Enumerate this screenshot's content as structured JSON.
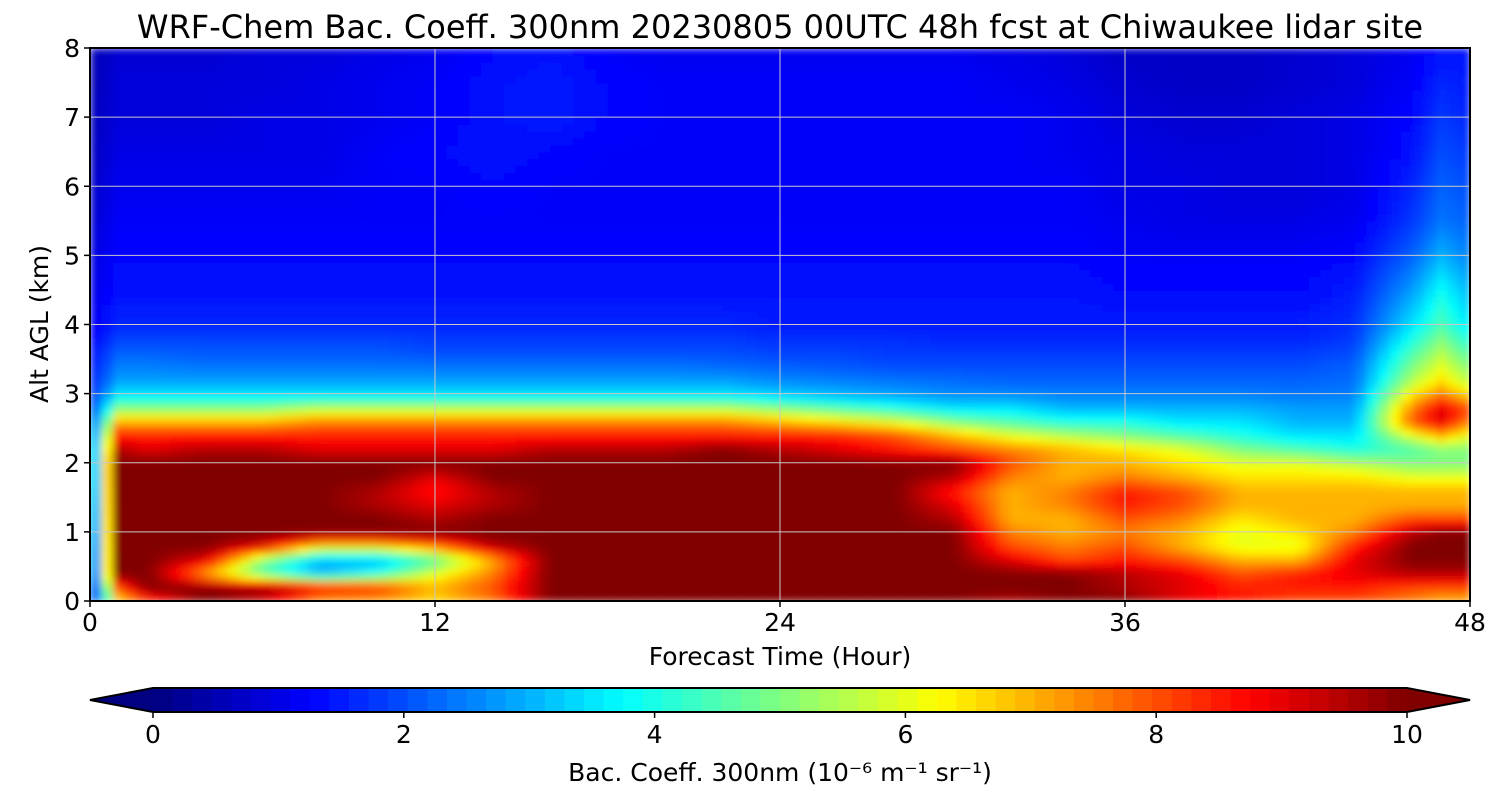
{
  "chart_data": {
    "type": "heatmap",
    "title": "WRF-Chem Bac. Coeff. 300nm  20230805 00UTC 48h fcst at Chiwaukee lidar site",
    "xlabel": "Forecast Time (Hour)",
    "ylabel": "Alt AGL (km)",
    "xlim": [
      0,
      48
    ],
    "ylim": [
      0,
      8
    ],
    "xticks": [
      0,
      12,
      24,
      36,
      48
    ],
    "yticks": [
      0,
      1,
      2,
      3,
      4,
      5,
      6,
      7,
      8
    ],
    "grid": true,
    "colormap": "jet",
    "colorbar": {
      "orientation": "horizontal",
      "range": [
        0,
        10
      ],
      "ticks": [
        0,
        2,
        4,
        6,
        8,
        10
      ],
      "extend": "both",
      "label": "Bac. Coeff. 300nm  (10⁻⁶ m⁻¹ sr⁻¹)"
    },
    "time_hours": [
      0,
      1,
      2,
      4,
      6,
      8,
      10,
      12,
      14,
      16,
      18,
      20,
      22,
      24,
      26,
      28,
      30,
      32,
      34,
      36,
      38,
      40,
      42,
      44,
      46,
      47,
      48
    ],
    "altitude_km": [
      0,
      0.2,
      0.4,
      0.6,
      0.8,
      1.0,
      1.2,
      1.4,
      1.6,
      1.8,
      2.0,
      2.2,
      2.4,
      2.6,
      2.8,
      3.0,
      3.2,
      3.4,
      3.6,
      3.8,
      4.0,
      4.5,
      5.0,
      5.5,
      6.0,
      6.5,
      7.0,
      7.5,
      8.0
    ],
    "values": [
      [
        1.2,
        6.5,
        8.0,
        10.0,
        9.0,
        7.0,
        7.0,
        6.5,
        7.5,
        10.0,
        10.0,
        10.0,
        10.0,
        10.0,
        10.0,
        10.0,
        10.0,
        9.5,
        10.0,
        10.0,
        9.0,
        8.5,
        8.0,
        8.0,
        7.5,
        7.0,
        7.0
      ],
      [
        1.0,
        8.0,
        10.0,
        10.0,
        10.0,
        9.0,
        8.5,
        7.0,
        8.0,
        10.0,
        10.0,
        10.0,
        10.0,
        10.0,
        10.0,
        10.0,
        10.0,
        10.0,
        10.0,
        9.5,
        9.0,
        8.5,
        8.5,
        8.5,
        8.0,
        8.0,
        8.0
      ],
      [
        1.0,
        10.0,
        10.0,
        7.0,
        4.5,
        3.0,
        4.0,
        6.0,
        7.5,
        10.0,
        10.0,
        10.0,
        10.0,
        10.0,
        10.0,
        10.0,
        10.0,
        10.0,
        10.0,
        9.5,
        9.0,
        8.0,
        8.5,
        9.0,
        9.5,
        9.5,
        9.5
      ],
      [
        1.1,
        10.0,
        10.0,
        9.0,
        5.0,
        3.0,
        3.0,
        4.5,
        7.0,
        10.0,
        10.0,
        10.0,
        10.0,
        10.0,
        10.0,
        10.0,
        10.0,
        9.0,
        8.0,
        8.5,
        8.0,
        7.0,
        7.0,
        9.0,
        10.0,
        10.0,
        10.0
      ],
      [
        1.2,
        10.0,
        10.0,
        10.0,
        9.0,
        6.5,
        6.5,
        7.5,
        9.5,
        10.0,
        10.0,
        10.0,
        10.0,
        10.0,
        10.0,
        10.0,
        10.0,
        8.0,
        7.5,
        8.0,
        7.0,
        6.0,
        6.0,
        8.5,
        10.0,
        10.0,
        10.0
      ],
      [
        1.3,
        10.0,
        10.0,
        10.0,
        10.0,
        10.0,
        10.0,
        10.0,
        10.0,
        10.0,
        10.0,
        10.0,
        10.0,
        10.0,
        10.0,
        10.0,
        10.0,
        7.5,
        7.0,
        7.5,
        7.0,
        6.0,
        6.5,
        7.5,
        9.5,
        10.0,
        10.0
      ],
      [
        1.4,
        10.0,
        10.0,
        10.0,
        10.0,
        10.0,
        10.0,
        9.5,
        10.0,
        10.0,
        10.0,
        10.0,
        10.0,
        10.0,
        10.0,
        10.0,
        9.5,
        7.0,
        7.0,
        8.0,
        7.5,
        6.5,
        7.0,
        7.0,
        8.0,
        8.0,
        8.0
      ],
      [
        1.5,
        10.0,
        10.0,
        10.0,
        10.0,
        10.0,
        9.5,
        9.0,
        9.5,
        10.0,
        10.0,
        10.0,
        10.0,
        10.0,
        10.0,
        10.0,
        9.0,
        7.0,
        7.5,
        8.5,
        8.0,
        7.0,
        7.0,
        7.0,
        7.0,
        7.0,
        7.0
      ],
      [
        1.6,
        10.0,
        10.0,
        10.0,
        10.0,
        10.0,
        9.5,
        8.5,
        9.5,
        10.0,
        10.0,
        10.0,
        10.0,
        10.0,
        10.0,
        10.0,
        8.5,
        7.0,
        7.5,
        8.5,
        8.0,
        7.0,
        7.0,
        7.0,
        7.0,
        7.0,
        7.0
      ],
      [
        1.7,
        10.0,
        10.0,
        10.0,
        10.0,
        10.0,
        10.0,
        9.0,
        10.0,
        10.0,
        10.0,
        10.0,
        10.0,
        10.0,
        10.0,
        10.0,
        9.5,
        7.5,
        7.0,
        7.5,
        7.0,
        6.5,
        6.5,
        6.5,
        6.0,
        6.0,
        6.0
      ],
      [
        1.7,
        10.0,
        10.0,
        10.0,
        10.0,
        10.0,
        10.0,
        10.0,
        10.0,
        10.0,
        10.0,
        10.0,
        10.0,
        10.0,
        10.0,
        10.0,
        10.0,
        8.0,
        7.0,
        7.0,
        6.5,
        6.0,
        6.0,
        5.5,
        5.0,
        5.0,
        5.0
      ],
      [
        1.8,
        9.5,
        9.0,
        9.5,
        9.5,
        9.0,
        9.0,
        9.0,
        9.0,
        9.5,
        9.5,
        9.5,
        10.0,
        9.5,
        9.0,
        8.5,
        8.0,
        7.5,
        7.0,
        6.5,
        6.0,
        5.0,
        4.5,
        4.0,
        4.5,
        5.0,
        5.0
      ],
      [
        1.8,
        8.5,
        8.5,
        8.5,
        8.5,
        8.5,
        8.5,
        8.5,
        8.5,
        8.5,
        8.5,
        8.5,
        8.5,
        8.5,
        8.5,
        8.0,
        7.0,
        6.0,
        5.5,
        5.0,
        4.5,
        4.0,
        3.5,
        3.5,
        6.0,
        7.0,
        6.0
      ],
      [
        1.8,
        7.0,
        7.0,
        7.0,
        7.0,
        7.5,
        7.5,
        7.5,
        7.5,
        7.5,
        7.5,
        7.5,
        7.5,
        7.0,
        6.5,
        6.0,
        5.0,
        4.5,
        4.0,
        4.0,
        3.5,
        3.5,
        3.0,
        3.0,
        8.0,
        9.0,
        7.5
      ],
      [
        1.7,
        5.0,
        5.0,
        5.0,
        5.0,
        5.5,
        5.5,
        5.5,
        5.5,
        5.5,
        5.5,
        5.5,
        5.5,
        5.0,
        4.5,
        4.0,
        3.5,
        3.5,
        3.0,
        3.0,
        3.0,
        3.0,
        2.8,
        2.8,
        7.5,
        9.0,
        8.0
      ],
      [
        1.6,
        3.5,
        3.5,
        3.5,
        3.5,
        3.5,
        3.5,
        3.5,
        3.5,
        3.5,
        3.5,
        3.5,
        3.5,
        3.2,
        3.0,
        2.8,
        2.6,
        2.6,
        2.5,
        2.5,
        2.5,
        2.5,
        2.4,
        2.5,
        6.5,
        7.5,
        6.5
      ],
      [
        1.5,
        2.8,
        2.8,
        2.8,
        2.8,
        2.8,
        2.8,
        2.8,
        2.8,
        2.8,
        2.8,
        2.8,
        2.8,
        2.6,
        2.5,
        2.4,
        2.3,
        2.2,
        2.2,
        2.2,
        2.2,
        2.2,
        2.2,
        2.3,
        5.5,
        6.5,
        5.5
      ],
      [
        1.4,
        2.5,
        2.5,
        2.4,
        2.4,
        2.4,
        2.4,
        2.4,
        2.4,
        2.4,
        2.4,
        2.4,
        2.3,
        2.2,
        2.1,
        2.0,
        2.0,
        2.0,
        2.0,
        2.0,
        2.0,
        2.0,
        2.0,
        2.2,
        5.0,
        6.0,
        5.0
      ],
      [
        1.3,
        2.2,
        2.2,
        2.1,
        2.1,
        2.1,
        2.1,
        2.0,
        2.0,
        2.0,
        2.0,
        2.0,
        2.0,
        1.9,
        1.9,
        1.8,
        1.8,
        1.8,
        1.8,
        1.8,
        1.8,
        1.8,
        1.8,
        2.0,
        4.5,
        5.5,
        4.5
      ],
      [
        1.2,
        1.9,
        1.9,
        1.9,
        1.9,
        1.9,
        1.9,
        1.8,
        1.8,
        1.8,
        1.8,
        1.8,
        1.8,
        1.7,
        1.7,
        1.7,
        1.6,
        1.6,
        1.6,
        1.6,
        1.6,
        1.6,
        1.6,
        1.8,
        4.0,
        5.0,
        4.0
      ],
      [
        1.1,
        1.6,
        1.6,
        1.6,
        1.6,
        1.6,
        1.6,
        1.6,
        1.6,
        1.6,
        1.6,
        1.6,
        1.6,
        1.5,
        1.5,
        1.5,
        1.5,
        1.5,
        1.5,
        1.5,
        1.5,
        1.5,
        1.5,
        1.7,
        3.5,
        4.5,
        3.5
      ],
      [
        1.0,
        1.4,
        1.4,
        1.4,
        1.4,
        1.4,
        1.4,
        1.4,
        1.4,
        1.4,
        1.4,
        1.4,
        1.4,
        1.4,
        1.4,
        1.4,
        1.4,
        1.4,
        1.4,
        1.3,
        1.3,
        1.3,
        1.3,
        1.5,
        2.8,
        3.8,
        3.0
      ],
      [
        0.9,
        1.3,
        1.3,
        1.3,
        1.3,
        1.3,
        1.3,
        1.3,
        1.3,
        1.3,
        1.3,
        1.3,
        1.3,
        1.3,
        1.3,
        1.3,
        1.3,
        1.3,
        1.3,
        1.2,
        1.2,
        1.2,
        1.2,
        1.3,
        2.2,
        3.0,
        2.5
      ],
      [
        0.8,
        1.2,
        1.2,
        1.2,
        1.2,
        1.2,
        1.2,
        1.2,
        1.2,
        1.2,
        1.2,
        1.2,
        1.2,
        1.2,
        1.2,
        1.2,
        1.2,
        1.2,
        1.2,
        1.1,
        1.0,
        1.0,
        1.0,
        1.1,
        1.8,
        2.4,
        2.2
      ],
      [
        0.7,
        1.1,
        1.1,
        1.1,
        1.1,
        1.1,
        1.2,
        1.2,
        1.3,
        1.2,
        1.2,
        1.2,
        1.2,
        1.2,
        1.2,
        1.2,
        1.2,
        1.2,
        1.2,
        1.0,
        1.0,
        0.9,
        0.9,
        1.0,
        1.6,
        2.2,
        2.0
      ],
      [
        0.6,
        1.0,
        1.0,
        1.0,
        1.0,
        1.0,
        1.2,
        1.3,
        1.4,
        1.3,
        1.2,
        1.2,
        1.2,
        1.2,
        1.2,
        1.2,
        1.2,
        1.2,
        1.1,
        1.0,
        0.9,
        0.9,
        0.9,
        1.0,
        1.4,
        2.0,
        1.8
      ],
      [
        0.6,
        0.9,
        0.9,
        0.9,
        1.0,
        1.0,
        1.1,
        1.2,
        1.4,
        1.5,
        1.3,
        1.2,
        1.2,
        1.2,
        1.2,
        1.2,
        1.2,
        1.2,
        1.1,
        0.9,
        0.8,
        0.8,
        0.9,
        1.0,
        1.3,
        1.8,
        1.6
      ],
      [
        0.5,
        0.9,
        0.9,
        0.9,
        0.9,
        1.0,
        1.1,
        1.2,
        1.4,
        1.5,
        1.3,
        1.2,
        1.2,
        1.2,
        1.2,
        1.2,
        1.2,
        1.1,
        1.0,
        0.8,
        0.7,
        0.7,
        0.8,
        0.9,
        1.2,
        1.6,
        1.5
      ],
      [
        0.5,
        0.8,
        0.8,
        0.8,
        0.9,
        0.9,
        1.0,
        1.1,
        1.3,
        1.4,
        1.2,
        1.1,
        1.1,
        1.1,
        1.1,
        1.1,
        1.1,
        1.0,
        0.9,
        0.7,
        0.7,
        0.7,
        0.8,
        0.9,
        1.1,
        1.4,
        1.4
      ]
    ]
  }
}
